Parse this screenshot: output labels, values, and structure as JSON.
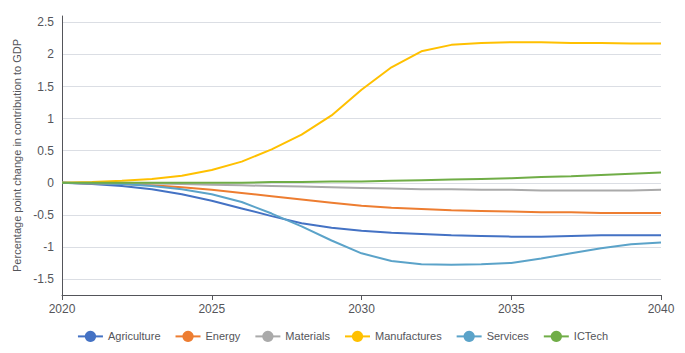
{
  "chart_data": {
    "type": "line",
    "ylabel": "Percentage point change in contribution to GDP",
    "x": [
      2020,
      2021,
      2022,
      2023,
      2024,
      2025,
      2026,
      2027,
      2028,
      2029,
      2030,
      2031,
      2032,
      2033,
      2034,
      2035,
      2036,
      2037,
      2038,
      2039,
      2040
    ],
    "series": [
      {
        "name": "Agriculture",
        "color": "#4472C4",
        "values": [
          0.0,
          -0.02,
          -0.05,
          -0.1,
          -0.18,
          -0.28,
          -0.4,
          -0.52,
          -0.63,
          -0.7,
          -0.75,
          -0.78,
          -0.8,
          -0.82,
          -0.83,
          -0.84,
          -0.84,
          -0.83,
          -0.82,
          -0.82,
          -0.82
        ]
      },
      {
        "name": "Energy",
        "color": "#ED7D31",
        "values": [
          0.0,
          -0.01,
          -0.02,
          -0.04,
          -0.07,
          -0.11,
          -0.16,
          -0.21,
          -0.26,
          -0.31,
          -0.36,
          -0.39,
          -0.41,
          -0.43,
          -0.44,
          -0.45,
          -0.46,
          -0.46,
          -0.47,
          -0.47,
          -0.47
        ]
      },
      {
        "name": "Materials",
        "color": "#AAAAAA",
        "values": [
          0.0,
          0.0,
          -0.01,
          -0.01,
          -0.02,
          -0.03,
          -0.04,
          -0.05,
          -0.06,
          -0.07,
          -0.08,
          -0.09,
          -0.1,
          -0.1,
          -0.11,
          -0.11,
          -0.12,
          -0.12,
          -0.12,
          -0.12,
          -0.11
        ]
      },
      {
        "name": "Manufactures",
        "color": "#FFC000",
        "values": [
          0.0,
          0.01,
          0.03,
          0.06,
          0.11,
          0.2,
          0.33,
          0.52,
          0.75,
          1.05,
          1.45,
          1.8,
          2.05,
          2.15,
          2.18,
          2.19,
          2.19,
          2.18,
          2.18,
          2.17,
          2.17
        ]
      },
      {
        "name": "Services",
        "color": "#5BA3C9",
        "values": [
          0.0,
          -0.01,
          -0.02,
          -0.05,
          -0.1,
          -0.18,
          -0.3,
          -0.48,
          -0.68,
          -0.9,
          -1.1,
          -1.22,
          -1.27,
          -1.28,
          -1.27,
          -1.25,
          -1.18,
          -1.1,
          -1.02,
          -0.96,
          -0.93
        ]
      },
      {
        "name": "ICTech",
        "color": "#70AD47",
        "values": [
          0.0,
          0.0,
          0.0,
          0.0,
          0.0,
          0.0,
          0.0,
          0.01,
          0.01,
          0.02,
          0.02,
          0.03,
          0.04,
          0.05,
          0.06,
          0.07,
          0.09,
          0.1,
          0.12,
          0.14,
          0.16
        ]
      }
    ],
    "xlim": [
      2020,
      2040
    ],
    "xticks": [
      2020,
      2025,
      2030,
      2035,
      2040
    ],
    "ylim": [
      -1.75,
      2.6
    ],
    "yticks": [
      -1.5,
      -1,
      -0.5,
      0,
      0.5,
      1,
      1.5,
      2,
      2.5
    ],
    "grid": true,
    "legend": "bottom"
  }
}
